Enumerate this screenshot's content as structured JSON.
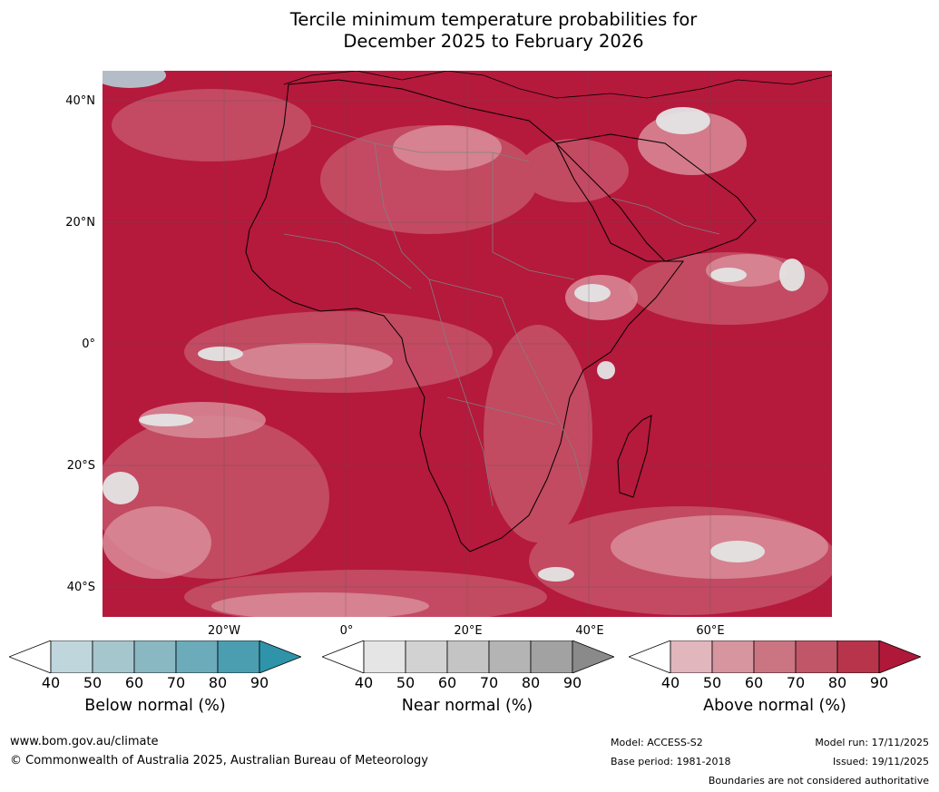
{
  "title_line1": "Tercile minimum temperature probabilities for",
  "title_line2": "December 2025 to February 2026",
  "lat_labels": [
    "40°N",
    "20°N",
    "0°",
    "20°S",
    "40°S"
  ],
  "lon_labels": [
    "20°W",
    "0°",
    "20°E",
    "40°E",
    "60°E"
  ],
  "colorbars": [
    {
      "label": "Below normal (%)",
      "ticks": [
        "40",
        "50",
        "60",
        "70",
        "80",
        "90"
      ],
      "colors": [
        "#ffffff",
        "#c0d6dd",
        "#a6c6ce",
        "#89b8c3",
        "#6cabba",
        "#4a9eb0",
        "#2f93a9"
      ]
    },
    {
      "label": "Near normal (%)",
      "ticks": [
        "40",
        "50",
        "60",
        "70",
        "80",
        "90"
      ],
      "colors": [
        "#ffffff",
        "#e5e5e5",
        "#d2d2d2",
        "#c4c4c4",
        "#b4b4b4",
        "#a2a2a2",
        "#8a8a8a"
      ]
    },
    {
      "label": "Above normal (%)",
      "ticks": [
        "40",
        "50",
        "60",
        "70",
        "80",
        "90"
      ],
      "colors": [
        "#ffffff",
        "#e2b6bd",
        "#d6959f",
        "#ca7581",
        "#c05668",
        "#b8344b",
        "#b0183a"
      ]
    }
  ],
  "footer": {
    "website": "www.bom.gov.au/climate",
    "copyright": "© Commonwealth of Australia 2025, Australian Bureau of Meteorology",
    "model": "Model: ACCESS-S2",
    "base_period": "Base period: 1981-2018",
    "model_run": "Model run: 17/11/2025",
    "issued": "Issued: 19/11/2025",
    "disclaimer": "Boundaries are not considered authoritative"
  }
}
